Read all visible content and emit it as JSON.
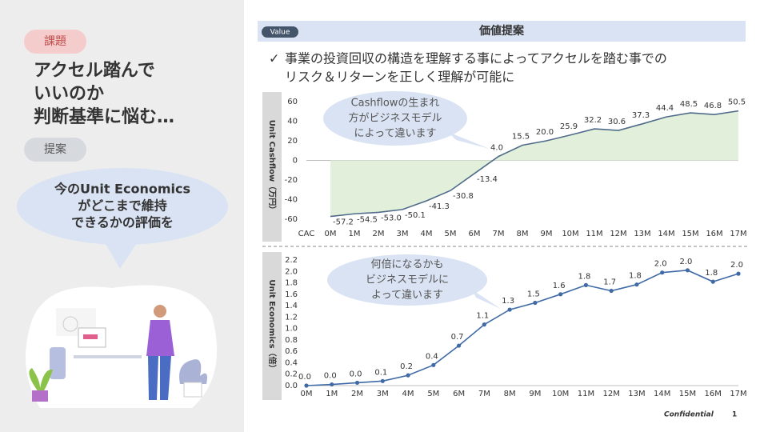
{
  "left": {
    "tag1": "課題",
    "heading": [
      "アクセル踏んで",
      "いいのか",
      "判断基準に悩む…"
    ],
    "tag2": "提案",
    "bubble": [
      "今のUnit Economics",
      "がどこまで維持",
      "できるかの評価を"
    ]
  },
  "header": {
    "pill": "Value",
    "title": "価値提案"
  },
  "note": {
    "bullet": "✓",
    "lines": [
      "事業の投資回収の構造を理解する事によってアクセルを踏む事での",
      "リスク＆リターンを正しく理解が可能に"
    ]
  },
  "chart_data": [
    {
      "type": "area",
      "y_label": "Unit Cashflow（万円）",
      "annotation": [
        "Cashflowの生まれ",
        "方がビジネスモデル",
        "によって違います"
      ],
      "categories": [
        "CAC",
        "0M",
        "1M",
        "2M",
        "3M",
        "4M",
        "5M",
        "6M",
        "7M",
        "8M",
        "9M",
        "10M",
        "11M",
        "12M",
        "13M",
        "14M",
        "15M",
        "16M",
        "17M"
      ],
      "values": [
        null,
        -57.2,
        -54.5,
        -53.0,
        -50.1,
        -41.3,
        -30.8,
        -13.4,
        4.0,
        15.5,
        20.0,
        25.9,
        32.2,
        30.6,
        37.3,
        44.4,
        48.5,
        46.8,
        50.5
      ],
      "value_labels": [
        null,
        "-57.2",
        "-54.5",
        "-53.0",
        "-50.1",
        "-41.3",
        "-30.8",
        "-13.4",
        "4.0",
        "15.5",
        "20.0",
        "25.9",
        "32.2",
        "30.6",
        "37.3",
        "44.4",
        "48.5",
        "46.8",
        "50.5"
      ],
      "color": "#4f6b8a",
      "fill": "#e2efda",
      "ylim": [
        -60,
        60
      ],
      "yticks": [
        -60,
        -40,
        -20,
        0,
        20,
        40,
        60
      ]
    },
    {
      "type": "line",
      "y_label": "Unit Economics（倍）",
      "annotation": [
        "何倍になるかも",
        "ビジネスモデルに",
        "よって違います"
      ],
      "categories": [
        "0M",
        "1M",
        "2M",
        "3M",
        "4M",
        "5M",
        "6M",
        "7M",
        "8M",
        "9M",
        "10M",
        "11M",
        "12M",
        "13M",
        "14M",
        "15M",
        "16M",
        "17M"
      ],
      "values": [
        0.0,
        0.02,
        0.05,
        0.08,
        0.18,
        0.36,
        0.7,
        1.07,
        1.33,
        1.45,
        1.6,
        1.76,
        1.66,
        1.77,
        1.98,
        2.02,
        1.82,
        1.96
      ],
      "value_labels": [
        "0.0",
        "0.0",
        "0.0",
        "0.1",
        "0.2",
        "0.4",
        "0.7",
        "1.1",
        "1.3",
        "1.5",
        "1.6",
        "1.8",
        "1.7",
        "1.8",
        "2.0",
        "2.0",
        "1.8",
        "2.0"
      ],
      "color": "#3f6aa6",
      "ylim": [
        0,
        2.2
      ],
      "yticks": [
        {
          "value": 0,
          "label": "0.0"
        },
        0.2,
        0.4,
        0.6,
        0.8,
        {
          "value": 1,
          "label": "1.0"
        },
        1.2,
        1.4,
        1.6,
        1.8,
        {
          "value": 2,
          "label": "2.0"
        },
        2.2
      ]
    }
  ],
  "footer": {
    "confidential": "Confidential",
    "page": "1"
  }
}
